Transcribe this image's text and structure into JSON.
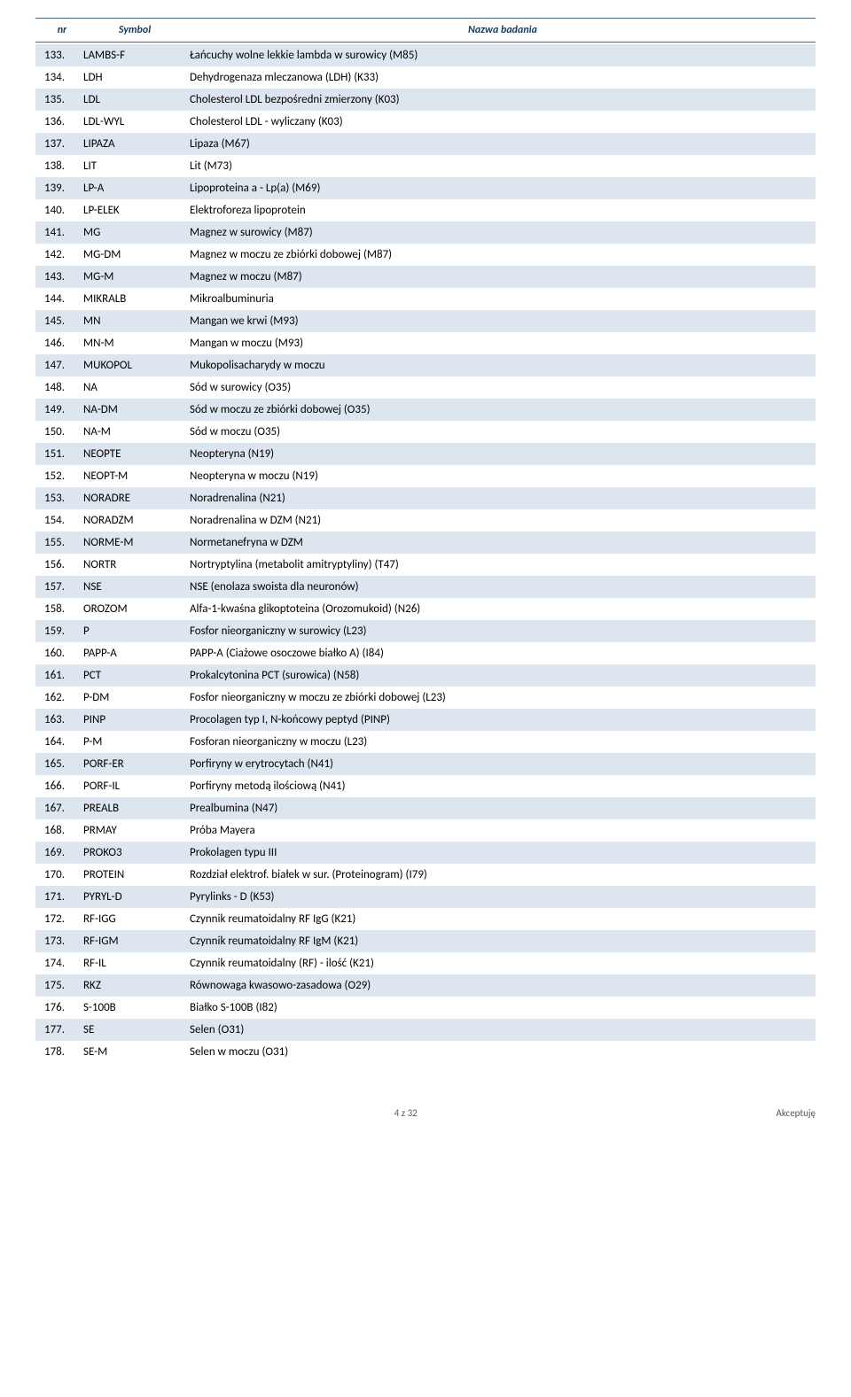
{
  "header": {
    "nr": "nr",
    "symbol": "Symbol",
    "nazwa": "Nazwa badania"
  },
  "rows": [
    {
      "nr": "133.",
      "symbol": "LAMBS-F",
      "nazwa": "Łańcuchy wolne lekkie lambda w surowicy (M85)"
    },
    {
      "nr": "134.",
      "symbol": "LDH",
      "nazwa": "Dehydrogenaza mleczanowa (LDH) (K33)"
    },
    {
      "nr": "135.",
      "symbol": "LDL",
      "nazwa": "Cholesterol LDL bezpośredni zmierzony (K03)"
    },
    {
      "nr": "136.",
      "symbol": "LDL-WYL",
      "nazwa": "Cholesterol LDL - wyliczany (K03)"
    },
    {
      "nr": "137.",
      "symbol": "LIPAZA",
      "nazwa": "Lipaza (M67)"
    },
    {
      "nr": "138.",
      "symbol": "LIT",
      "nazwa": "Lit (M73)"
    },
    {
      "nr": "139.",
      "symbol": "LP-A",
      "nazwa": "Lipoproteina a - Lp(a) (M69)"
    },
    {
      "nr": "140.",
      "symbol": "LP-ELEK",
      "nazwa": "Elektroforeza lipoprotein"
    },
    {
      "nr": "141.",
      "symbol": "MG",
      "nazwa": "Magnez w surowicy (M87)"
    },
    {
      "nr": "142.",
      "symbol": "MG-DM",
      "nazwa": "Magnez w moczu ze zbiórki dobowej (M87)"
    },
    {
      "nr": "143.",
      "symbol": "MG-M",
      "nazwa": "Magnez w moczu (M87)"
    },
    {
      "nr": "144.",
      "symbol": "MIKRALB",
      "nazwa": "Mikroalbuminuria"
    },
    {
      "nr": "145.",
      "symbol": "MN",
      "nazwa": "Mangan we krwi (M93)"
    },
    {
      "nr": "146.",
      "symbol": "MN-M",
      "nazwa": "Mangan w moczu (M93)"
    },
    {
      "nr": "147.",
      "symbol": "MUKOPOL",
      "nazwa": "Mukopolisacharydy w moczu"
    },
    {
      "nr": "148.",
      "symbol": "NA",
      "nazwa": "Sód w surowicy (O35)"
    },
    {
      "nr": "149.",
      "symbol": "NA-DM",
      "nazwa": "Sód w moczu ze zbiórki dobowej (O35)"
    },
    {
      "nr": "150.",
      "symbol": "NA-M",
      "nazwa": "Sód w moczu (O35)"
    },
    {
      "nr": "151.",
      "symbol": "NEOPTE",
      "nazwa": "Neopteryna (N19)"
    },
    {
      "nr": "152.",
      "symbol": "NEOPT-M",
      "nazwa": "Neopteryna w moczu (N19)"
    },
    {
      "nr": "153.",
      "symbol": "NORADRE",
      "nazwa": "Noradrenalina (N21)"
    },
    {
      "nr": "154.",
      "symbol": "NORADZM",
      "nazwa": "Noradrenalina w DZM (N21)"
    },
    {
      "nr": "155.",
      "symbol": "NORME-M",
      "nazwa": "Normetanefryna w DZM"
    },
    {
      "nr": "156.",
      "symbol": "NORTR",
      "nazwa": "Nortryptylina (metabolit amitryptyliny) (T47)"
    },
    {
      "nr": "157.",
      "symbol": "NSE",
      "nazwa": "NSE (enolaza swoista dla neuronów)"
    },
    {
      "nr": "158.",
      "symbol": "OROZOM",
      "nazwa": "Alfa-1-kwaśna glikoptoteina (Orozomukoid) (N26)"
    },
    {
      "nr": "159.",
      "symbol": "P",
      "nazwa": "Fosfor nieorganiczny w surowicy (L23)"
    },
    {
      "nr": "160.",
      "symbol": "PAPP-A",
      "nazwa": "PAPP-A (Ciażowe osoczowe białko A) (I84)"
    },
    {
      "nr": "161.",
      "symbol": "PCT",
      "nazwa": "Prokalcytonina PCT (surowica) (N58)"
    },
    {
      "nr": "162.",
      "symbol": "P-DM",
      "nazwa": "Fosfor nieorganiczny w moczu ze zbiórki dobowej (L23)"
    },
    {
      "nr": "163.",
      "symbol": "PINP",
      "nazwa": "Procolagen typ I, N-końcowy peptyd (PINP)"
    },
    {
      "nr": "164.",
      "symbol": "P-M",
      "nazwa": "Fosforan nieorganiczny w moczu (L23)"
    },
    {
      "nr": "165.",
      "symbol": "PORF-ER",
      "nazwa": "Porfiryny w erytrocytach (N41)"
    },
    {
      "nr": "166.",
      "symbol": "PORF-IL",
      "nazwa": "Porfiryny metodą ilościową (N41)"
    },
    {
      "nr": "167.",
      "symbol": "PREALB",
      "nazwa": "Prealbumina (N47)"
    },
    {
      "nr": "168.",
      "symbol": "PRMAY",
      "nazwa": "Próba Mayera"
    },
    {
      "nr": "169.",
      "symbol": "PROKO3",
      "nazwa": "Prokolagen typu III"
    },
    {
      "nr": "170.",
      "symbol": "PROTEIN",
      "nazwa": "Rozdział elektrof. białek w sur. (Proteinogram) (I79)"
    },
    {
      "nr": "171.",
      "symbol": "PYRYL-D",
      "nazwa": "Pyrylinks - D (K53)"
    },
    {
      "nr": "172.",
      "symbol": "RF-IGG",
      "nazwa": "Czynnik reumatoidalny RF IgG (K21)"
    },
    {
      "nr": "173.",
      "symbol": "RF-IGM",
      "nazwa": "Czynnik reumatoidalny RF IgM (K21)"
    },
    {
      "nr": "174.",
      "symbol": "RF-IL",
      "nazwa": "Czynnik reumatoidalny (RF) - ilość (K21)"
    },
    {
      "nr": "175.",
      "symbol": "RKZ",
      "nazwa": "Równowaga kwasowo-zasadowa (O29)"
    },
    {
      "nr": "176.",
      "symbol": "S-100B",
      "nazwa": "Białko S-100B (I82)"
    },
    {
      "nr": "177.",
      "symbol": "SE",
      "nazwa": "Selen (O31)"
    },
    {
      "nr": "178.",
      "symbol": "SE-M",
      "nazwa": "Selen w moczu (O31)"
    }
  ],
  "footer": {
    "page": "4 z 32",
    "accept": "Akceptuję"
  },
  "colors": {
    "alt_row": "#dde5ee",
    "header_border": "#4a6a8a",
    "header_text": "#1a3a5a",
    "body_text": "#000000",
    "background": "#ffffff"
  }
}
